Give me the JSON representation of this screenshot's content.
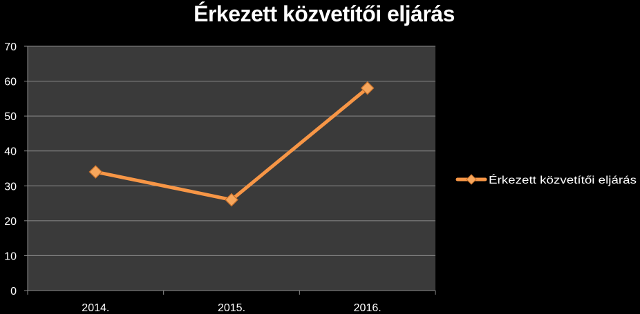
{
  "colors": {
    "background": "#000000",
    "plot_area": "#3a3a3a",
    "gridline": "#8c8c8c",
    "series": "#f79646",
    "marker_fill": "#f6a65c",
    "text": "#ffffff"
  },
  "chart_data": {
    "type": "line",
    "title": "Érkezett közvetítői eljárás",
    "categories": [
      "2014.",
      "2015.",
      "2016."
    ],
    "series": [
      {
        "name": "Érkezett közvetítői eljárás",
        "values": [
          34,
          26,
          58
        ],
        "marker": "diamond"
      }
    ],
    "ylim": [
      0,
      70
    ],
    "yticks": [
      0,
      10,
      20,
      30,
      40,
      50,
      60,
      70
    ],
    "xlabel": "",
    "ylabel": "",
    "grid": true,
    "legend": "right"
  }
}
